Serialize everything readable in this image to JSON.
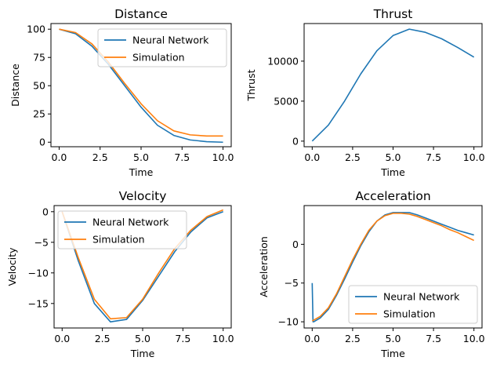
{
  "chart_data": [
    {
      "type": "line",
      "title": "Distance",
      "xlabel": "Time",
      "ylabel": "Distance",
      "xlim": [
        -0.5,
        10.5
      ],
      "ylim": [
        -4,
        105
      ],
      "xticks": [
        0,
        2.5,
        5,
        7.5,
        10
      ],
      "xtick_labels": [
        "0.0",
        "2.5",
        "5.0",
        "7.5",
        "10.0"
      ],
      "yticks": [
        0,
        25,
        50,
        75,
        100
      ],
      "ytick_labels": [
        "0",
        "25",
        "50",
        "75",
        "100"
      ],
      "legend": "top-right",
      "grid": false,
      "x": [
        0,
        1,
        2,
        3,
        4,
        5,
        6,
        7,
        8,
        9,
        10
      ],
      "series": [
        {
          "name": "Neural Network",
          "color": "#1f77b4",
          "values": [
            100,
            96,
            85,
            69,
            50,
            31,
            15,
            6,
            2,
            0.5,
            0
          ]
        },
        {
          "name": "Simulation",
          "color": "#ff7f0e",
          "values": [
            100,
            97,
            87,
            71,
            52,
            34,
            19,
            10,
            6.5,
            5.5,
            5.5
          ]
        }
      ]
    },
    {
      "type": "line",
      "title": "Thrust",
      "xlabel": "Time",
      "ylabel": "Thrust",
      "xlim": [
        -0.5,
        10.5
      ],
      "ylim": [
        -700,
        14700
      ],
      "xticks": [
        0,
        2.5,
        5,
        7.5,
        10
      ],
      "xtick_labels": [
        "0.0",
        "2.5",
        "5.0",
        "7.5",
        "10.0"
      ],
      "yticks": [
        0,
        5000,
        10000
      ],
      "ytick_labels": [
        "0",
        "5000",
        "10000"
      ],
      "grid": false,
      "x": [
        0,
        1,
        2,
        3,
        4,
        5,
        6,
        7,
        8,
        9,
        10
      ],
      "series": [
        {
          "color": "#1f77b4",
          "values": [
            0,
            2000,
            5000,
            8400,
            11300,
            13200,
            14000,
            13600,
            12800,
            11700,
            10500
          ]
        }
      ]
    },
    {
      "type": "line",
      "title": "Velocity",
      "xlabel": "Time",
      "ylabel": "Velocity",
      "xlim": [
        -0.5,
        10.5
      ],
      "ylim": [
        -19,
        1
      ],
      "xticks": [
        0,
        2.5,
        5,
        7.5,
        10
      ],
      "xtick_labels": [
        "0.0",
        "2.5",
        "5.0",
        "7.5",
        "10.0"
      ],
      "yticks": [
        0,
        -5,
        -10,
        -15
      ],
      "ytick_labels": [
        "0",
        "−5",
        "−10",
        "−15"
      ],
      "legend": "top-left",
      "grid": false,
      "x": [
        0,
        1,
        2,
        3,
        4,
        5,
        6,
        7,
        8,
        9,
        10
      ],
      "series": [
        {
          "name": "Neural Network",
          "color": "#1f77b4",
          "values": [
            0,
            -8,
            -15,
            -18,
            -17.6,
            -14.5,
            -10.5,
            -6.5,
            -3.3,
            -1,
            0
          ]
        },
        {
          "name": "Simulation",
          "color": "#ff7f0e",
          "values": [
            0,
            -7.5,
            -14.3,
            -17.5,
            -17.3,
            -14.3,
            -10,
            -6,
            -3,
            -0.8,
            0.3
          ]
        }
      ]
    },
    {
      "type": "line",
      "title": "Acceleration",
      "xlabel": "Time",
      "ylabel": "Acceleration",
      "xlim": [
        -0.5,
        10.5
      ],
      "ylim": [
        -10.8,
        5
      ],
      "xticks": [
        0,
        2.5,
        5,
        7.5,
        10
      ],
      "xtick_labels": [
        "0.0",
        "2.5",
        "5.0",
        "7.5",
        "10.0"
      ],
      "yticks": [
        0,
        -5,
        -10
      ],
      "ytick_labels": [
        "0",
        "−5",
        "−10"
      ],
      "legend": "bottom-right",
      "grid": false,
      "series": [
        {
          "name": "Neural Network",
          "color": "#1f77b4",
          "x": [
            0,
            0.05,
            0.1,
            0.5,
            1,
            1.5,
            2,
            2.5,
            3,
            3.5,
            4,
            4.5,
            5,
            5.5,
            6,
            6.5,
            7,
            7.5,
            8,
            8.5,
            9,
            9.5,
            10
          ],
          "values": [
            -5,
            -10,
            -10,
            -9.5,
            -8.4,
            -6.6,
            -4.5,
            -2.3,
            -0.2,
            1.6,
            3,
            3.8,
            4.1,
            4.1,
            4.1,
            3.8,
            3.4,
            3,
            2.6,
            2.2,
            1.8,
            1.5,
            1.2
          ]
        },
        {
          "name": "Simulation",
          "color": "#ff7f0e",
          "x": [
            0,
            0.5,
            1,
            1.5,
            2,
            2.5,
            3,
            3.5,
            4,
            4.5,
            5,
            5.5,
            6,
            6.5,
            7,
            7.5,
            8,
            8.5,
            9,
            9.5,
            10
          ],
          "values": [
            -9.9,
            -9.3,
            -8.2,
            -6.4,
            -4.2,
            -2,
            0,
            1.8,
            3,
            3.7,
            4,
            4,
            3.9,
            3.6,
            3.2,
            2.8,
            2.4,
            1.9,
            1.5,
            1,
            0.5
          ]
        }
      ]
    }
  ]
}
